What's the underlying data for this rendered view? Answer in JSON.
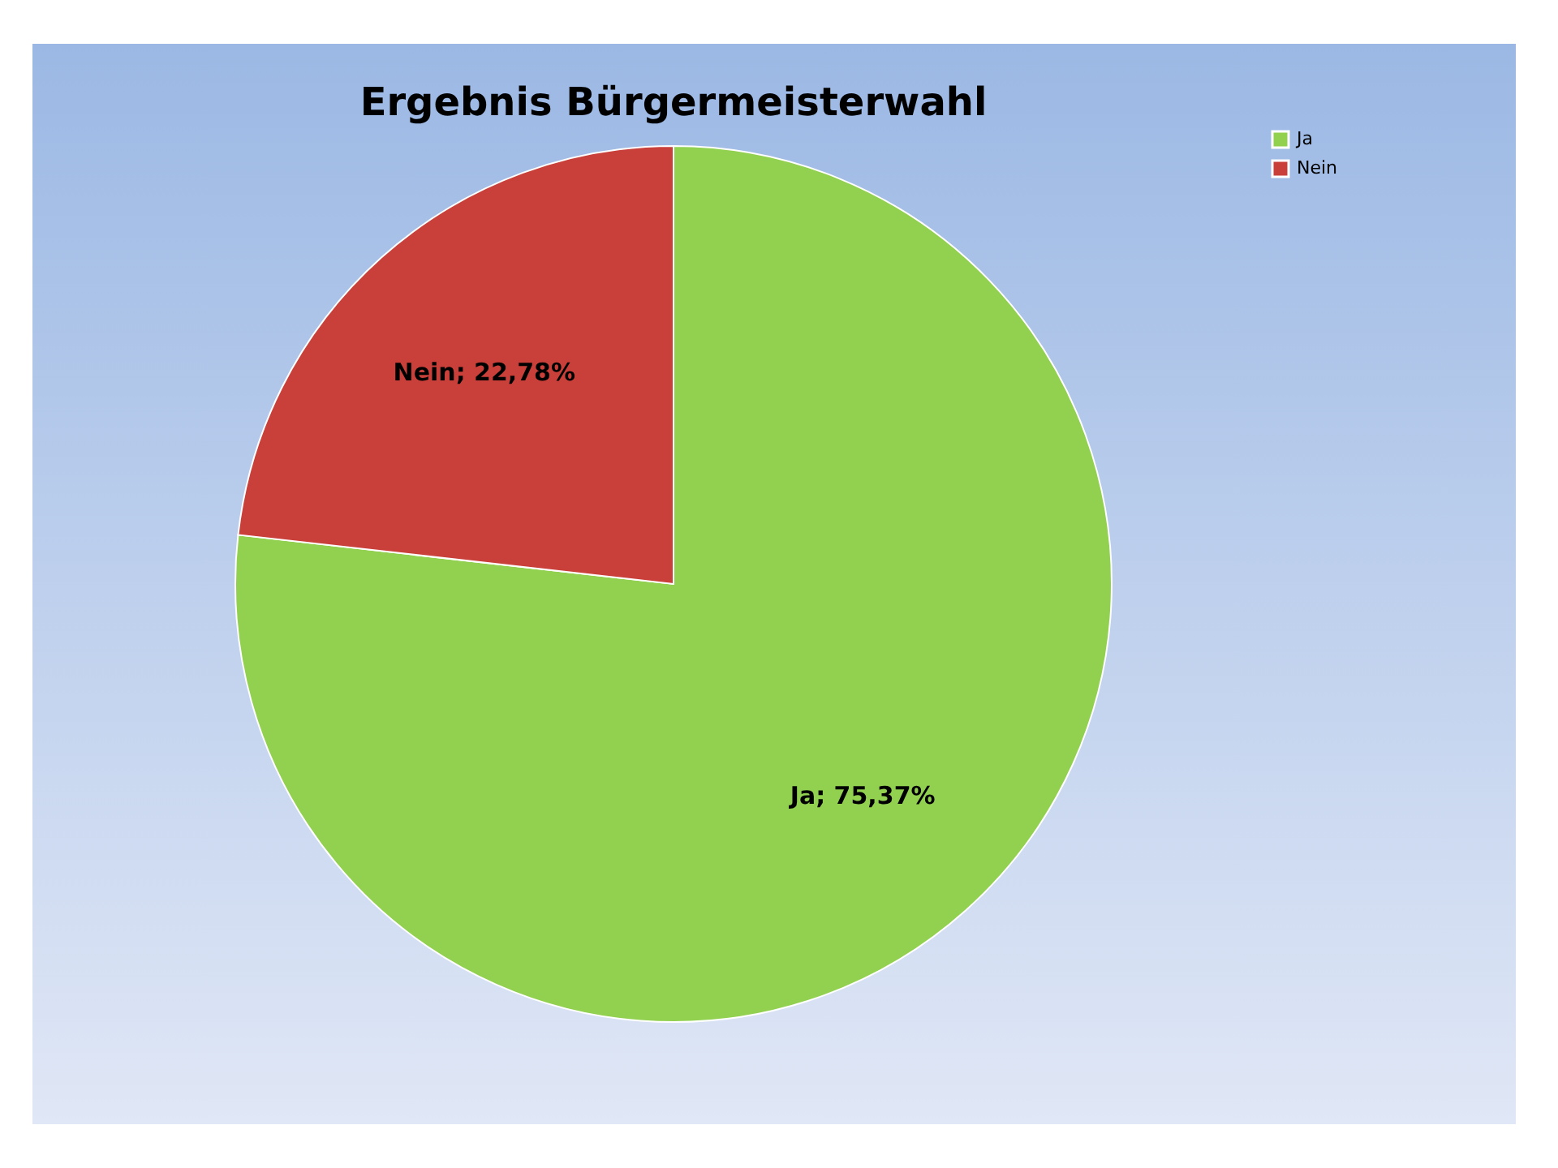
{
  "chart_data": {
    "type": "pie",
    "title": "Ergebnis Bürgermeisterwahl",
    "categories": [
      "Ja",
      "Nein"
    ],
    "values": [
      75.37,
      22.78
    ],
    "colors": [
      "#92d050",
      "#c9403a"
    ],
    "value_labels": [
      "Ja; 75,37%",
      "Nein; 22,78%"
    ],
    "legend": "right"
  }
}
